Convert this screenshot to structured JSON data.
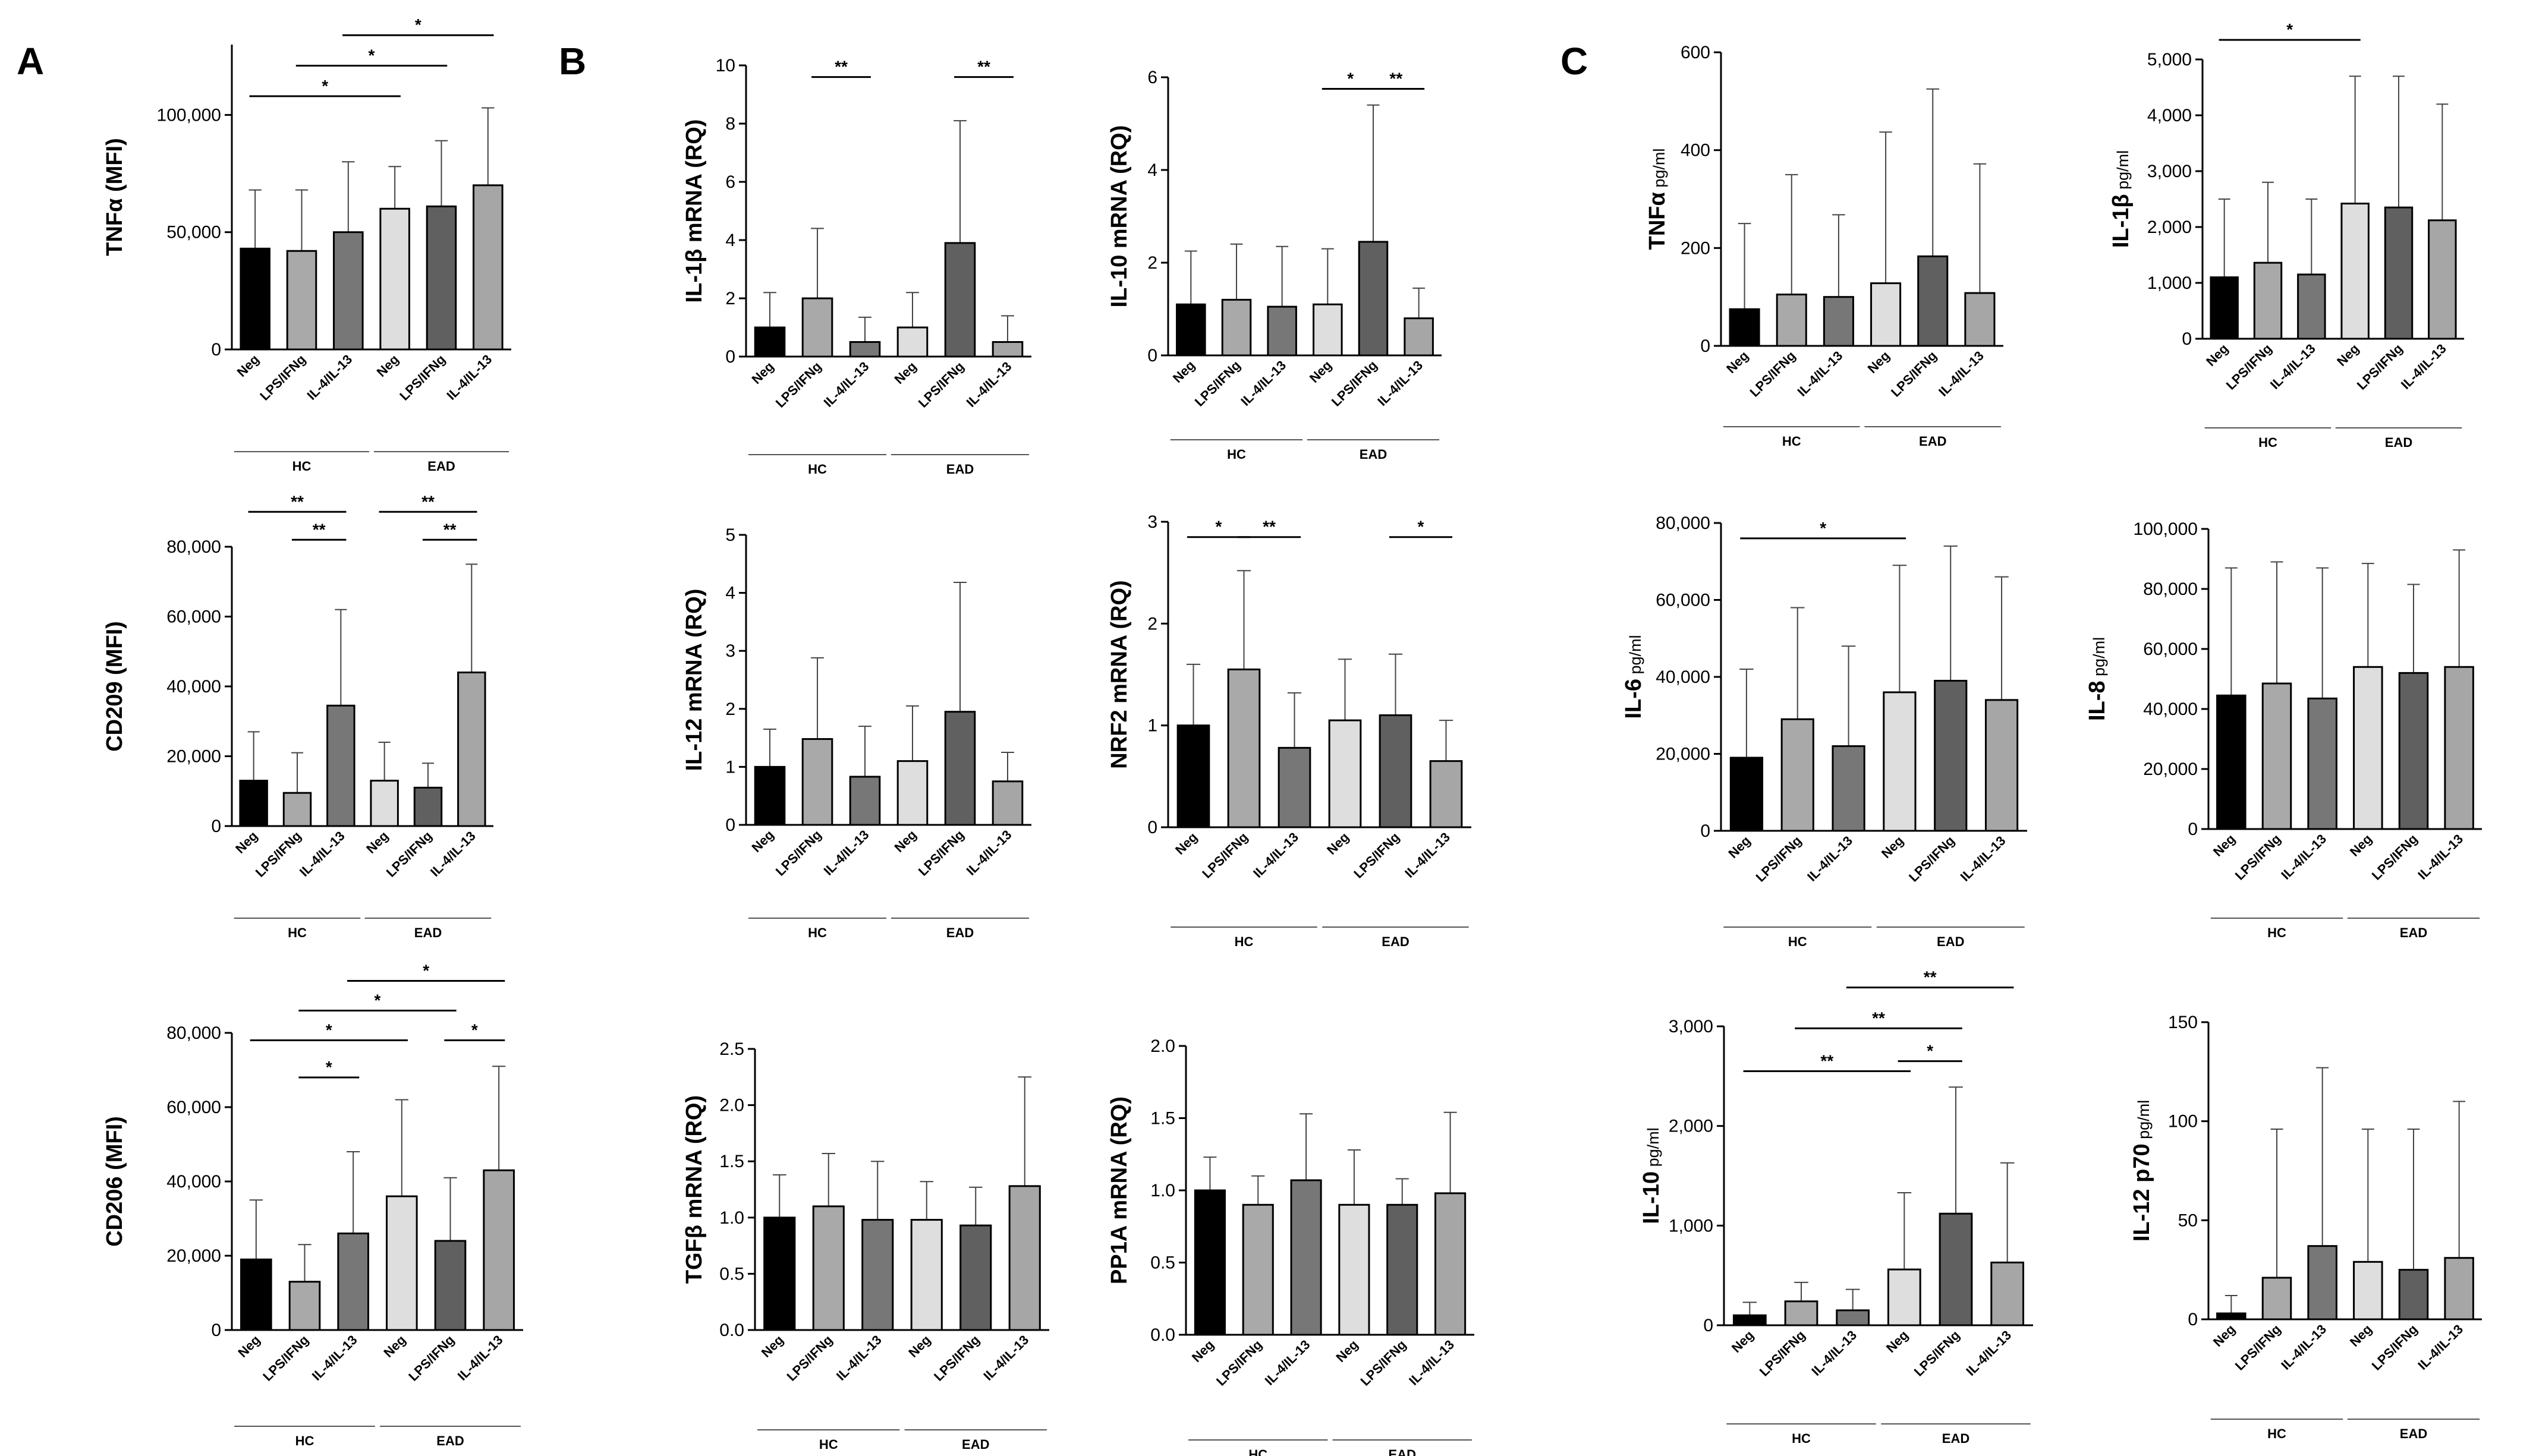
{
  "figure": {
    "panel_letters": [
      "A",
      "B",
      "C"
    ]
  },
  "colors": {
    "Neg_HC": "#000000",
    "LPS/IFNg_HC": "#a9a9a9",
    "IL-4/IL-13_HC": "#777777",
    "Neg_EAD": "#dedede",
    "LPS/IFNg_EAD": "#606060",
    "IL-4/IL-13_EAD": "#a6a6a6",
    "outline": "#000000"
  },
  "chart_data": [
    {
      "id": "A1",
      "panel": "A",
      "type": "bar",
      "ylabel_main": "TNFα (MFI)",
      "ylabel_unit": "",
      "ylim": [
        0,
        130000
      ],
      "yticks": [
        0,
        50000,
        100000
      ],
      "ytick_labels": [
        "0",
        "50,000",
        "100,000"
      ],
      "categories": [
        "Neg",
        "LPS/IFNg",
        "IL-4/IL-13",
        "Neg",
        "LPS/IFNg",
        "IL-4/IL-13"
      ],
      "groups": [
        {
          "name": "HC",
          "span": [
            0,
            2
          ]
        },
        {
          "name": "EAD",
          "span": [
            3,
            5
          ]
        }
      ],
      "values": [
        43000,
        42000,
        50000,
        60000,
        61000,
        70000
      ],
      "errors": [
        68000,
        68000,
        80000,
        78000,
        89000,
        103000
      ],
      "significance": [
        {
          "from": 0,
          "to": 3,
          "y": 108000,
          "label": "*"
        },
        {
          "from": 1,
          "to": 4,
          "y": 121000,
          "label": "*"
        },
        {
          "from": 2,
          "to": 5,
          "y": 134000,
          "label": "*"
        }
      ]
    },
    {
      "id": "A2",
      "panel": "A",
      "type": "bar",
      "ylabel_main": "CD209 (MFI)",
      "ylabel_unit": "",
      "ylim": [
        0,
        80000
      ],
      "yticks": [
        0,
        20000,
        40000,
        60000,
        80000
      ],
      "ytick_labels": [
        "0",
        "20,000",
        "40,000",
        "60,000",
        "80,000"
      ],
      "categories": [
        "Neg",
        "LPS/IFNg",
        "IL-4/IL-13",
        "Neg",
        "LPS/IFNg",
        "IL-4/IL-13"
      ],
      "groups": [
        {
          "name": "HC",
          "span": [
            0,
            2
          ]
        },
        {
          "name": "EAD",
          "span": [
            3,
            5
          ]
        }
      ],
      "values": [
        13000,
        9500,
        34500,
        13000,
        11000,
        44000
      ],
      "errors": [
        27000,
        21000,
        62000,
        24000,
        18000,
        75000
      ],
      "significance": [
        {
          "from": 0,
          "to": 2,
          "y": 90000,
          "label": "**"
        },
        {
          "from": 1,
          "to": 2,
          "y": 82000,
          "label": "**"
        },
        {
          "from": 3,
          "to": 5,
          "y": 90000,
          "label": "**"
        },
        {
          "from": 4,
          "to": 5,
          "y": 82000,
          "label": "**"
        }
      ]
    },
    {
      "id": "A3",
      "panel": "A",
      "type": "bar",
      "ylabel_main": "CD206 (MFI)",
      "ylabel_unit": "",
      "ylim": [
        0,
        80000
      ],
      "yticks": [
        0,
        20000,
        40000,
        60000,
        80000
      ],
      "ytick_labels": [
        "0",
        "20,000",
        "40,000",
        "60,000",
        "80,000"
      ],
      "categories": [
        "Neg",
        "LPS/IFNg",
        "IL-4/IL-13",
        "Neg",
        "LPS/IFNg",
        "IL-4/IL-13"
      ],
      "groups": [
        {
          "name": "HC",
          "span": [
            0,
            2
          ]
        },
        {
          "name": "EAD",
          "span": [
            3,
            5
          ]
        }
      ],
      "values": [
        19000,
        13000,
        26000,
        36000,
        24000,
        43000
      ],
      "errors": [
        35000,
        23000,
        48000,
        62000,
        41000,
        71000
      ],
      "significance": [
        {
          "from": 0,
          "to": 3,
          "y": 78000,
          "label": "*"
        },
        {
          "from": 1,
          "to": 2,
          "y": 68000,
          "label": "*"
        },
        {
          "from": 1,
          "to": 4,
          "y": 86000,
          "label": "*"
        },
        {
          "from": 2,
          "to": 5,
          "y": 94000,
          "label": "*"
        },
        {
          "from": 4,
          "to": 5,
          "y": 78000,
          "label": "*"
        }
      ]
    },
    {
      "id": "B1",
      "panel": "B",
      "type": "bar",
      "ylabel_main": "IL-1β mRNA (RQ)",
      "ylabel_unit": "",
      "ylim": [
        0,
        10
      ],
      "yticks": [
        0,
        2,
        4,
        6,
        8,
        10
      ],
      "ytick_labels": [
        "0",
        "2",
        "4",
        "6",
        "8",
        "10"
      ],
      "categories": [
        "Neg",
        "LPS/IFNg",
        "IL-4/IL-13",
        "Neg",
        "LPS/IFNg",
        "IL-4/IL-13"
      ],
      "groups": [
        {
          "name": "HC",
          "span": [
            0,
            2
          ]
        },
        {
          "name": "EAD",
          "span": [
            3,
            5
          ]
        }
      ],
      "values": [
        1.0,
        2.0,
        0.5,
        1.0,
        3.9,
        0.5
      ],
      "errors": [
        2.2,
        4.4,
        1.35,
        2.2,
        8.1,
        1.4
      ],
      "significance": [
        {
          "from": 1,
          "to": 2,
          "y": 9.6,
          "label": "**"
        },
        {
          "from": 4,
          "to": 5,
          "y": 9.6,
          "label": "**"
        }
      ]
    },
    {
      "id": "B2",
      "panel": "B",
      "type": "bar",
      "ylabel_main": "IL-10 mRNA (RQ)",
      "ylabel_unit": "",
      "ylim": [
        0,
        6
      ],
      "yticks": [
        0,
        2,
        4,
        6
      ],
      "ytick_labels": [
        "0",
        "2",
        "4",
        "6"
      ],
      "categories": [
        "Neg",
        "LPS/IFNg",
        "IL-4/IL-13",
        "Neg",
        "LPS/IFNg",
        "IL-4/IL-13"
      ],
      "groups": [
        {
          "name": "HC",
          "span": [
            0,
            2
          ]
        },
        {
          "name": "EAD",
          "span": [
            3,
            5
          ]
        }
      ],
      "values": [
        1.1,
        1.2,
        1.05,
        1.1,
        2.45,
        0.8
      ],
      "errors": [
        2.25,
        2.4,
        2.35,
        2.3,
        5.4,
        1.45
      ],
      "significance": [
        {
          "from": 3,
          "to": 4,
          "y": 5.75,
          "label": "*"
        },
        {
          "from": 4,
          "to": 5,
          "y": 5.75,
          "label": "**"
        }
      ]
    },
    {
      "id": "B3",
      "panel": "B",
      "type": "bar",
      "ylabel_main": "IL-12 mRNA (RQ)",
      "ylabel_unit": "",
      "ylim": [
        0,
        5
      ],
      "yticks": [
        0,
        1,
        2,
        3,
        4,
        5
      ],
      "ytick_labels": [
        "0",
        "1",
        "2",
        "3",
        "4",
        "5"
      ],
      "categories": [
        "Neg",
        "LPS/IFNg",
        "IL-4/IL-13",
        "Neg",
        "LPS/IFNg",
        "IL-4/IL-13"
      ],
      "groups": [
        {
          "name": "HC",
          "span": [
            0,
            2
          ]
        },
        {
          "name": "EAD",
          "span": [
            3,
            5
          ]
        }
      ],
      "values": [
        1.0,
        1.48,
        0.83,
        1.1,
        1.95,
        0.75
      ],
      "errors": [
        1.65,
        2.88,
        1.7,
        2.05,
        4.18,
        1.25
      ],
      "significance": []
    },
    {
      "id": "B4",
      "panel": "B",
      "type": "bar",
      "ylabel_main": "NRF2 mRNA (RQ)",
      "ylabel_unit": "",
      "ylim": [
        0,
        3
      ],
      "yticks": [
        0,
        1,
        2,
        3
      ],
      "ytick_labels": [
        "0",
        "1",
        "2",
        "3"
      ],
      "categories": [
        "Neg",
        "LPS/IFNg",
        "IL-4/IL-13",
        "Neg",
        "LPS/IFNg",
        "IL-4/IL-13"
      ],
      "groups": [
        {
          "name": "HC",
          "span": [
            0,
            2
          ]
        },
        {
          "name": "EAD",
          "span": [
            3,
            5
          ]
        }
      ],
      "values": [
        1.0,
        1.55,
        0.78,
        1.05,
        1.1,
        0.65
      ],
      "errors": [
        1.6,
        2.52,
        1.32,
        1.65,
        1.7,
        1.05
      ],
      "significance": [
        {
          "from": 0,
          "to": 1,
          "y": 2.85,
          "label": "*"
        },
        {
          "from": 1,
          "to": 2,
          "y": 2.85,
          "label": "**"
        },
        {
          "from": 4,
          "to": 5,
          "y": 2.85,
          "label": "*"
        }
      ]
    },
    {
      "id": "B5",
      "panel": "B",
      "type": "bar",
      "ylabel_main": "TGFβ mRNA (RQ)",
      "ylabel_unit": "",
      "ylim": [
        0,
        2.5
      ],
      "yticks": [
        0,
        0.5,
        1.0,
        1.5,
        2.0,
        2.5
      ],
      "ytick_labels": [
        "0.0",
        "0.5",
        "1.0",
        "1.5",
        "2.0",
        "2.5"
      ],
      "categories": [
        "Neg",
        "LPS/IFNg",
        "IL-4/IL-13",
        "Neg",
        "LPS/IFNg",
        "IL-4/IL-13"
      ],
      "groups": [
        {
          "name": "HC",
          "span": [
            0,
            2
          ]
        },
        {
          "name": "EAD",
          "span": [
            3,
            5
          ]
        }
      ],
      "values": [
        1.0,
        1.1,
        0.98,
        0.98,
        0.93,
        1.28
      ],
      "errors": [
        1.38,
        1.57,
        1.5,
        1.32,
        1.27,
        2.25
      ],
      "significance": []
    },
    {
      "id": "B6",
      "panel": "B",
      "type": "bar",
      "ylabel_main": "PP1A mRNA (RQ)",
      "ylabel_unit": "",
      "ylim": [
        0,
        2.0
      ],
      "yticks": [
        0,
        0.5,
        1.0,
        1.5,
        2.0
      ],
      "ytick_labels": [
        "0.0",
        "0.5",
        "1.0",
        "1.5",
        "2.0"
      ],
      "categories": [
        "Neg",
        "LPS/IFNg",
        "IL-4/IL-13",
        "Neg",
        "LPS/IFNg",
        "IL-4/IL-13"
      ],
      "groups": [
        {
          "name": "HC",
          "span": [
            0,
            2
          ]
        },
        {
          "name": "EAD",
          "span": [
            3,
            5
          ]
        }
      ],
      "values": [
        1.0,
        0.9,
        1.07,
        0.9,
        0.9,
        0.98
      ],
      "errors": [
        1.23,
        1.1,
        1.53,
        1.28,
        1.08,
        1.54
      ],
      "significance": []
    },
    {
      "id": "C1",
      "panel": "C",
      "type": "bar",
      "ylabel_main": "TNFα",
      "ylabel_unit": " pg/ml",
      "ylim": [
        0,
        600
      ],
      "yticks": [
        0,
        200,
        400,
        600
      ],
      "ytick_labels": [
        "0",
        "200",
        "400",
        "600"
      ],
      "categories": [
        "Neg",
        "LPS/IFNg",
        "IL-4/IL-13",
        "Neg",
        "LPS/IFNg",
        "IL-4/IL-13"
      ],
      "groups": [
        {
          "name": "HC",
          "span": [
            0,
            2
          ]
        },
        {
          "name": "EAD",
          "span": [
            3,
            5
          ]
        }
      ],
      "values": [
        75,
        105,
        100,
        128,
        183,
        108
      ],
      "errors": [
        250,
        350,
        268,
        437,
        525,
        372
      ],
      "significance": []
    },
    {
      "id": "C2",
      "panel": "C",
      "type": "bar",
      "ylabel_main": "IL-1β",
      "ylabel_unit": " pg/ml",
      "ylim": [
        0,
        5000
      ],
      "yticks": [
        0,
        1000,
        2000,
        3000,
        4000,
        5000
      ],
      "ytick_labels": [
        "0",
        "1,000",
        "2,000",
        "3,000",
        "4,000",
        "5,000"
      ],
      "categories": [
        "Neg",
        "LPS/IFNg",
        "IL-4/IL-13",
        "Neg",
        "LPS/IFNg",
        "IL-4/IL-13"
      ],
      "groups": [
        {
          "name": "HC",
          "span": [
            0,
            2
          ]
        },
        {
          "name": "EAD",
          "span": [
            3,
            5
          ]
        }
      ],
      "values": [
        1100,
        1360,
        1150,
        2420,
        2350,
        2120
      ],
      "errors": [
        2500,
        2800,
        2500,
        4700,
        4700,
        4200
      ],
      "significance": [
        {
          "from": 0,
          "to": 3,
          "y": 5350,
          "label": "*"
        }
      ]
    },
    {
      "id": "C3",
      "panel": "C",
      "type": "bar",
      "ylabel_main": "IL-6",
      "ylabel_unit": " pg/ml",
      "ylim": [
        0,
        80000
      ],
      "yticks": [
        0,
        20000,
        40000,
        60000,
        80000
      ],
      "ytick_labels": [
        "0",
        "20,000",
        "40,000",
        "60,000",
        "80,000"
      ],
      "categories": [
        "Neg",
        "LPS/IFNg",
        "IL-4/IL-13",
        "Neg",
        "LPS/IFNg",
        "IL-4/IL-13"
      ],
      "groups": [
        {
          "name": "HC",
          "span": [
            0,
            2
          ]
        },
        {
          "name": "EAD",
          "span": [
            3,
            5
          ]
        }
      ],
      "values": [
        19000,
        29000,
        22000,
        36000,
        39000,
        34000
      ],
      "errors": [
        42000,
        58000,
        48000,
        69000,
        74000,
        66000
      ],
      "significance": [
        {
          "from": 0,
          "to": 3,
          "y": 76000,
          "label": "*"
        }
      ]
    },
    {
      "id": "C4",
      "panel": "C",
      "type": "bar",
      "ylabel_main": "IL-8",
      "ylabel_unit": " pg/ml",
      "ylim": [
        0,
        100000
      ],
      "yticks": [
        0,
        20000,
        40000,
        60000,
        80000,
        100000
      ],
      "ytick_labels": [
        "0",
        "20,000",
        "40,000",
        "60,000",
        "80,000",
        "100,000"
      ],
      "categories": [
        "Neg",
        "LPS/IFNg",
        "IL-4/IL-13",
        "Neg",
        "LPS/IFNg",
        "IL-4/IL-13"
      ],
      "groups": [
        {
          "name": "HC",
          "span": [
            0,
            2
          ]
        },
        {
          "name": "EAD",
          "span": [
            3,
            5
          ]
        }
      ],
      "values": [
        44500,
        48500,
        43500,
        54000,
        52000,
        54000
      ],
      "errors": [
        87000,
        89000,
        87000,
        88500,
        81500,
        93000
      ],
      "significance": []
    },
    {
      "id": "C5",
      "panel": "C",
      "type": "bar",
      "ylabel_main": "IL-10",
      "ylabel_unit": " pg/ml",
      "ylim": [
        0,
        3000
      ],
      "yticks": [
        0,
        1000,
        2000,
        3000
      ],
      "ytick_labels": [
        "0",
        "1,000",
        "2,000",
        "3,000"
      ],
      "categories": [
        "Neg",
        "LPS/IFNg",
        "IL-4/IL-13",
        "Neg",
        "LPS/IFNg",
        "IL-4/IL-13"
      ],
      "groups": [
        {
          "name": "HC",
          "span": [
            0,
            2
          ]
        },
        {
          "name": "EAD",
          "span": [
            3,
            5
          ]
        }
      ],
      "values": [
        100,
        240,
        150,
        560,
        1120,
        630
      ],
      "errors": [
        230,
        430,
        360,
        1330,
        2390,
        1630
      ],
      "significance": [
        {
          "from": 0,
          "to": 3,
          "y": 2550,
          "label": "**"
        },
        {
          "from": 1,
          "to": 4,
          "y": 2980,
          "label": "**"
        },
        {
          "from": 2,
          "to": 5,
          "y": 3390,
          "label": "**"
        },
        {
          "from": 3,
          "to": 4,
          "y": 2650,
          "label": "*"
        }
      ]
    },
    {
      "id": "C6",
      "panel": "C",
      "type": "bar",
      "ylabel_main": "IL-12 p70",
      "ylabel_unit": " pg/ml",
      "ylim": [
        0,
        150
      ],
      "yticks": [
        0,
        50,
        100,
        150
      ],
      "ytick_labels": [
        "0",
        "50",
        "100",
        "150"
      ],
      "categories": [
        "Neg",
        "LPS/IFNg",
        "IL-4/IL-13",
        "Neg",
        "LPS/IFNg",
        "IL-4/IL-13"
      ],
      "groups": [
        {
          "name": "HC",
          "span": [
            0,
            2
          ]
        },
        {
          "name": "EAD",
          "span": [
            3,
            5
          ]
        }
      ],
      "values": [
        3,
        21,
        37,
        29,
        25,
        31
      ],
      "errors": [
        12,
        96,
        127,
        96,
        96,
        110
      ],
      "significance": []
    }
  ]
}
